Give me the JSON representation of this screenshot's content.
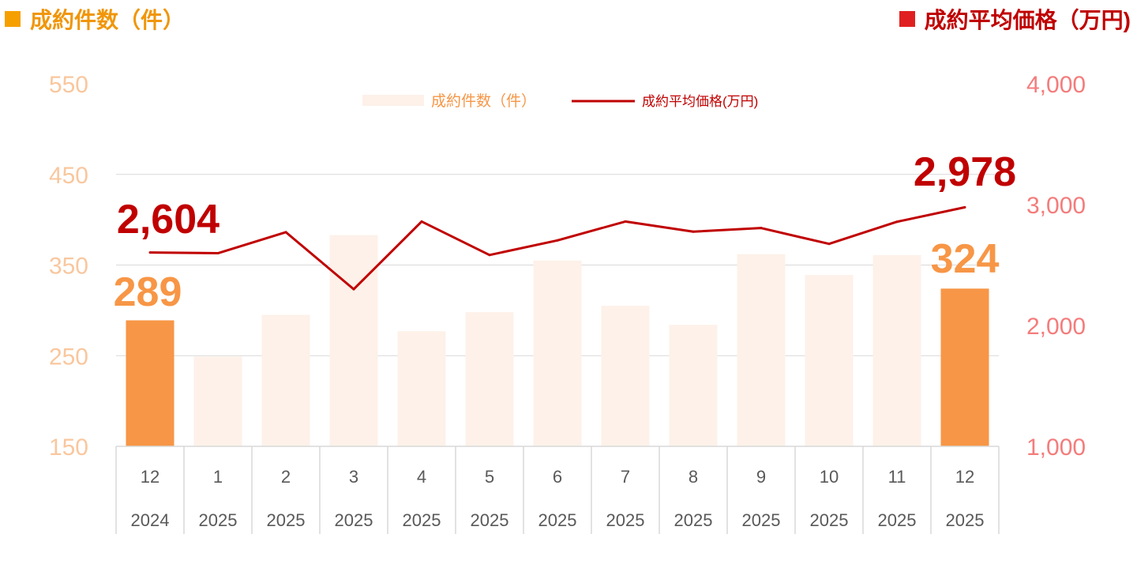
{
  "header": {
    "left_title": "成約件数（件）",
    "right_title": "成約平均価格（万円)"
  },
  "colors": {
    "bar_highlight": "#f79646",
    "bar_muted": "#fdf1e9",
    "line": "#c00000",
    "left_axis_text": "#f9c79e",
    "right_axis_text": "#f47c7c",
    "left_header": "#f0960a",
    "right_header": "#c00000",
    "category_text": "#595959",
    "gridline": "#d9d9d9"
  },
  "chart_data": {
    "type": "bar",
    "categories": [
      "12",
      "1",
      "2",
      "3",
      "4",
      "5",
      "6",
      "7",
      "8",
      "9",
      "10",
      "11",
      "12"
    ],
    "years": [
      "2024",
      "2025",
      "2025",
      "2025",
      "2025",
      "2025",
      "2025",
      "2025",
      "2025",
      "2025",
      "2025",
      "2025",
      "2025"
    ],
    "series": [
      {
        "name": "成約件数（件）",
        "type": "bar",
        "axis": "left",
        "values": [
          289,
          249,
          295,
          383,
          277,
          298,
          355,
          305,
          284,
          362,
          339,
          361,
          324
        ],
        "highlight_indices": [
          0,
          12
        ]
      },
      {
        "name": "成約平均価格(万円)",
        "type": "line",
        "axis": "right",
        "values": [
          2604,
          2598,
          2772,
          2300,
          2860,
          2583,
          2704,
          2860,
          2776,
          2806,
          2675,
          2858,
          2978
        ]
      }
    ],
    "left_axis": {
      "ticks": [
        "550",
        "450",
        "350",
        "250",
        "150"
      ],
      "ylim": [
        150,
        550
      ]
    },
    "right_axis": {
      "ticks": [
        "4,000",
        "3,000",
        "2,000",
        "1,000"
      ],
      "ylim": [
        1000,
        4000
      ]
    },
    "data_labels": [
      {
        "text": "2,604",
        "series": 1,
        "index": 0
      },
      {
        "text": "2,978",
        "series": 1,
        "index": 12
      },
      {
        "text": "289",
        "series": 0,
        "index": 0
      },
      {
        "text": "324",
        "series": 0,
        "index": 12
      }
    ],
    "legend": {
      "position": "top-center",
      "bar_label": "成約件数（件）",
      "line_label": "成約平均価格(万円)"
    },
    "grid": true
  }
}
